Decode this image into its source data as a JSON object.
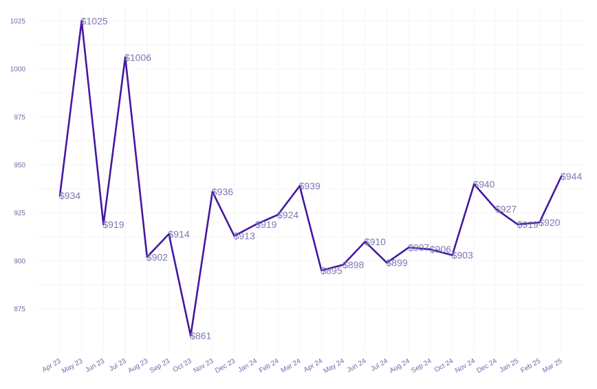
{
  "chart_data": {
    "type": "line",
    "title": "",
    "xlabel": "",
    "ylabel": "",
    "categories": [
      "Apr 23",
      "May 23",
      "Jun 23",
      "Jul 23",
      "Aug 23",
      "Sep 23",
      "Oct 23",
      "Nov 23",
      "Dec 23",
      "Jan 24",
      "Feb 24",
      "Mar 24",
      "Apr 24",
      "May 24",
      "Jun 24",
      "Jul 24",
      "Aug 24",
      "Sep 24",
      "Oct 24",
      "Nov 24",
      "Dec 24",
      "Jan 25",
      "Feb 25",
      "Mar 25"
    ],
    "values": [
      934,
      1025,
      919,
      1006,
      902,
      914,
      861,
      936,
      913,
      919,
      924,
      939,
      895,
      898,
      910,
      899,
      907,
      906,
      903,
      940,
      927,
      919,
      920,
      944
    ],
    "data_labels": [
      "$934",
      "$1025",
      "$919",
      "$1006",
      "$902",
      "$914",
      "$861",
      "$936",
      "$913",
      "$919",
      "$924",
      "$939",
      "$895",
      "$898",
      "$910",
      "$899",
      "$907",
      "$906",
      "$903",
      "$940",
      "$927",
      "$919",
      "$920",
      "$944"
    ],
    "yticks": [
      875,
      900,
      925,
      950,
      975,
      1000,
      1025
    ],
    "ylim": [
      853,
      1033
    ],
    "grid": true,
    "legend": "none",
    "line_color": "#4516a0"
  }
}
